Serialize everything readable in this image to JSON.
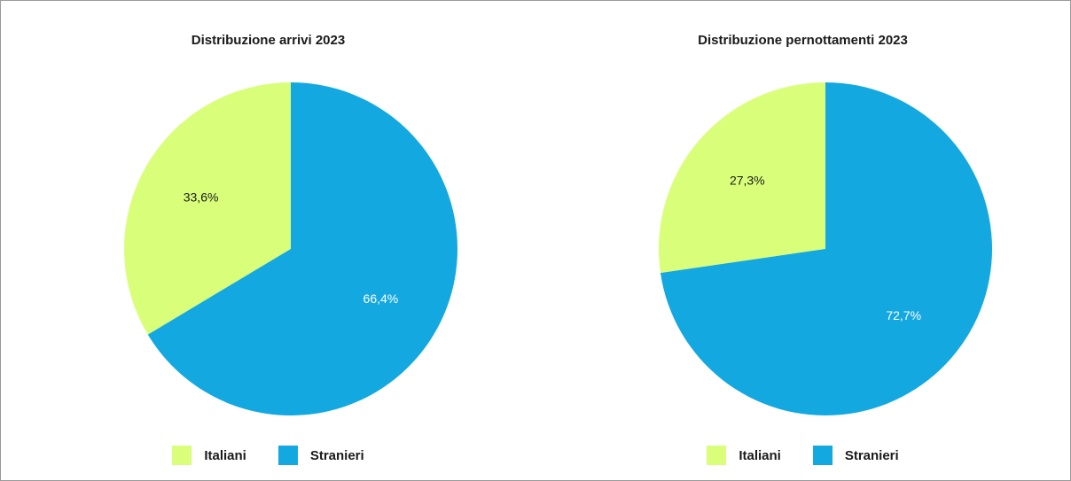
{
  "chart_data": [
    {
      "type": "pie",
      "title": "Distribuzione arrivi 2023",
      "categories": [
        "Italiani",
        "Stranieri"
      ],
      "values": [
        33.6,
        66.4
      ],
      "labels": [
        "33,6%",
        "66,4%"
      ],
      "colors": [
        "#d9ff7a",
        "#14a8e1"
      ],
      "label_colors": [
        "#1a1a1a",
        "#ffffff"
      ],
      "legend": {
        "position": "bottom",
        "entries": [
          "Italiani",
          "Stranieri"
        ]
      }
    },
    {
      "type": "pie",
      "title": "Distribuzione pernottamenti 2023",
      "categories": [
        "Italiani",
        "Stranieri"
      ],
      "values": [
        27.3,
        72.7
      ],
      "labels": [
        "27,3%",
        "72,7%"
      ],
      "colors": [
        "#d9ff7a",
        "#14a8e1"
      ],
      "label_colors": [
        "#1a1a1a",
        "#ffffff"
      ],
      "legend": {
        "position": "bottom",
        "entries": [
          "Italiani",
          "Stranieri"
        ]
      }
    }
  ]
}
